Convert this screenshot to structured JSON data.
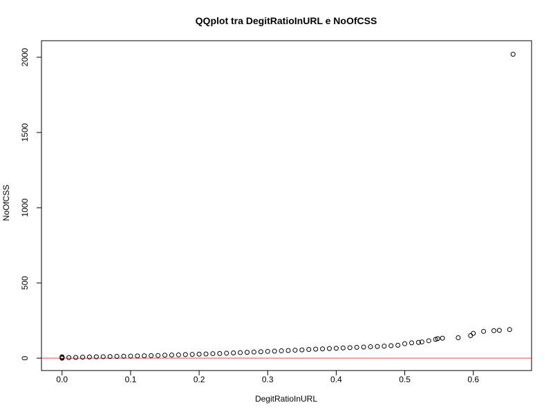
{
  "chart_data": {
    "type": "scatter",
    "title": "QQplot tra DegitRatioInURL e NoOfCSS",
    "xlabel": "DegitRatioInURL",
    "ylabel": "NoOfCSS",
    "xlim": [
      -0.03,
      0.685
    ],
    "ylim": [
      -82,
      2110
    ],
    "xticks": [
      0.0,
      0.1,
      0.2,
      0.3,
      0.4,
      0.5,
      0.6
    ],
    "xtick_labels": [
      "0.0",
      "0.1",
      "0.2",
      "0.3",
      "0.4",
      "0.5",
      "0.6"
    ],
    "yticks": [
      0,
      500,
      1000,
      1500,
      2000
    ],
    "ytick_labels": [
      "0",
      "500",
      "1000",
      "1500",
      "2000"
    ],
    "grid": false,
    "reference_line": {
      "orientation": "horizontal",
      "y": 0,
      "color": "#ff8080"
    },
    "point_color": "#000000",
    "series": [
      {
        "points": [
          [
            0.0,
            0
          ],
          [
            0.0,
            3
          ],
          [
            0.0,
            6
          ],
          [
            0.0,
            9
          ],
          [
            0.01,
            4
          ],
          [
            0.02,
            5
          ],
          [
            0.03,
            7
          ],
          [
            0.04,
            8
          ],
          [
            0.05,
            9
          ],
          [
            0.06,
            10
          ],
          [
            0.07,
            11
          ],
          [
            0.08,
            12
          ],
          [
            0.09,
            13
          ],
          [
            0.1,
            14
          ],
          [
            0.11,
            15
          ],
          [
            0.12,
            16
          ],
          [
            0.13,
            17
          ],
          [
            0.14,
            18
          ],
          [
            0.15,
            20
          ],
          [
            0.16,
            21
          ],
          [
            0.17,
            22
          ],
          [
            0.18,
            24
          ],
          [
            0.19,
            25
          ],
          [
            0.2,
            27
          ],
          [
            0.21,
            28
          ],
          [
            0.22,
            30
          ],
          [
            0.23,
            31
          ],
          [
            0.24,
            33
          ],
          [
            0.25,
            35
          ],
          [
            0.26,
            37
          ],
          [
            0.27,
            39
          ],
          [
            0.28,
            41
          ],
          [
            0.29,
            43
          ],
          [
            0.3,
            45
          ],
          [
            0.31,
            47
          ],
          [
            0.32,
            49
          ],
          [
            0.33,
            51
          ],
          [
            0.34,
            53
          ],
          [
            0.35,
            55
          ],
          [
            0.36,
            58
          ],
          [
            0.37,
            60
          ],
          [
            0.38,
            62
          ],
          [
            0.39,
            64
          ],
          [
            0.4,
            66
          ],
          [
            0.41,
            68
          ],
          [
            0.42,
            70
          ],
          [
            0.43,
            72
          ],
          [
            0.44,
            74
          ],
          [
            0.45,
            76
          ],
          [
            0.46,
            78
          ],
          [
            0.47,
            80
          ],
          [
            0.48,
            83
          ],
          [
            0.49,
            86
          ],
          [
            0.5,
            96
          ],
          [
            0.51,
            102
          ],
          [
            0.52,
            105
          ],
          [
            0.525,
            108
          ],
          [
            0.535,
            116
          ],
          [
            0.545,
            125
          ],
          [
            0.548,
            130
          ],
          [
            0.555,
            133
          ],
          [
            0.578,
            136
          ],
          [
            0.596,
            150
          ],
          [
            0.6,
            165
          ],
          [
            0.615,
            178
          ],
          [
            0.63,
            183
          ],
          [
            0.638,
            185
          ],
          [
            0.653,
            190
          ],
          [
            0.658,
            2020
          ]
        ]
      }
    ]
  }
}
